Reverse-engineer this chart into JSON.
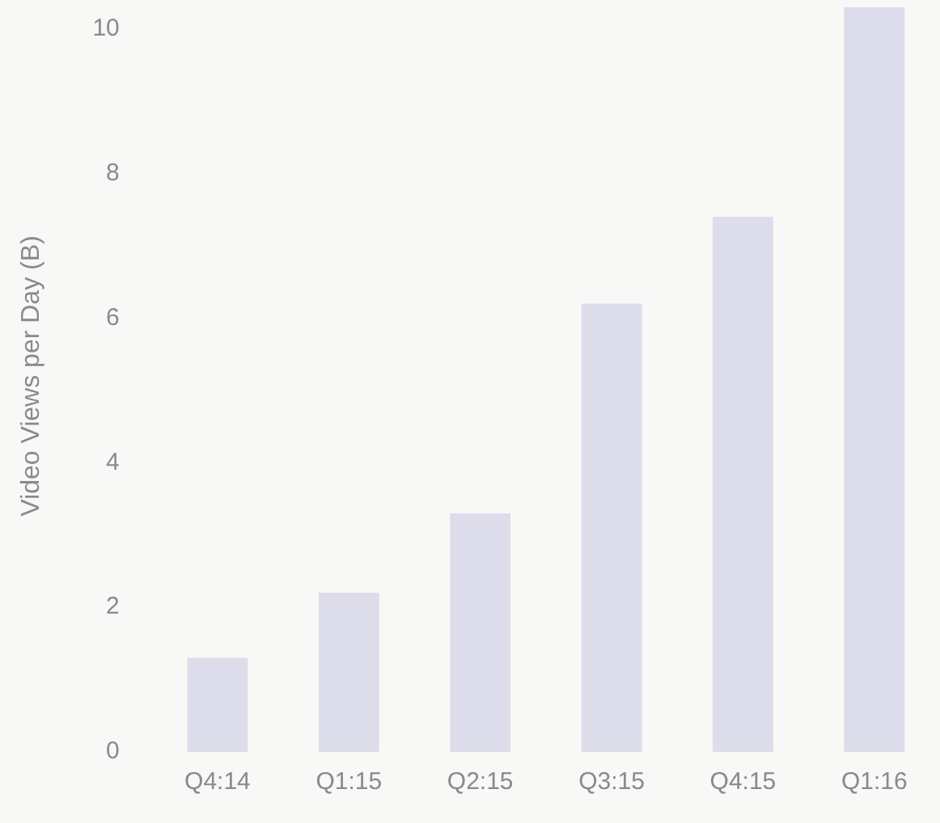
{
  "chart_data": {
    "type": "bar",
    "ylabel": "Video Views per Day (B)",
    "categories": [
      "Q4:14",
      "Q1:15",
      "Q2:15",
      "Q3:15",
      "Q4:15",
      "Q1:16"
    ],
    "values": [
      1.3,
      2.2,
      3.3,
      6.2,
      7.4,
      10.3
    ],
    "color": "#dcdcea",
    "ylim": [
      0,
      10.4
    ],
    "yticks": [
      0,
      2,
      4,
      6,
      8,
      10
    ]
  }
}
